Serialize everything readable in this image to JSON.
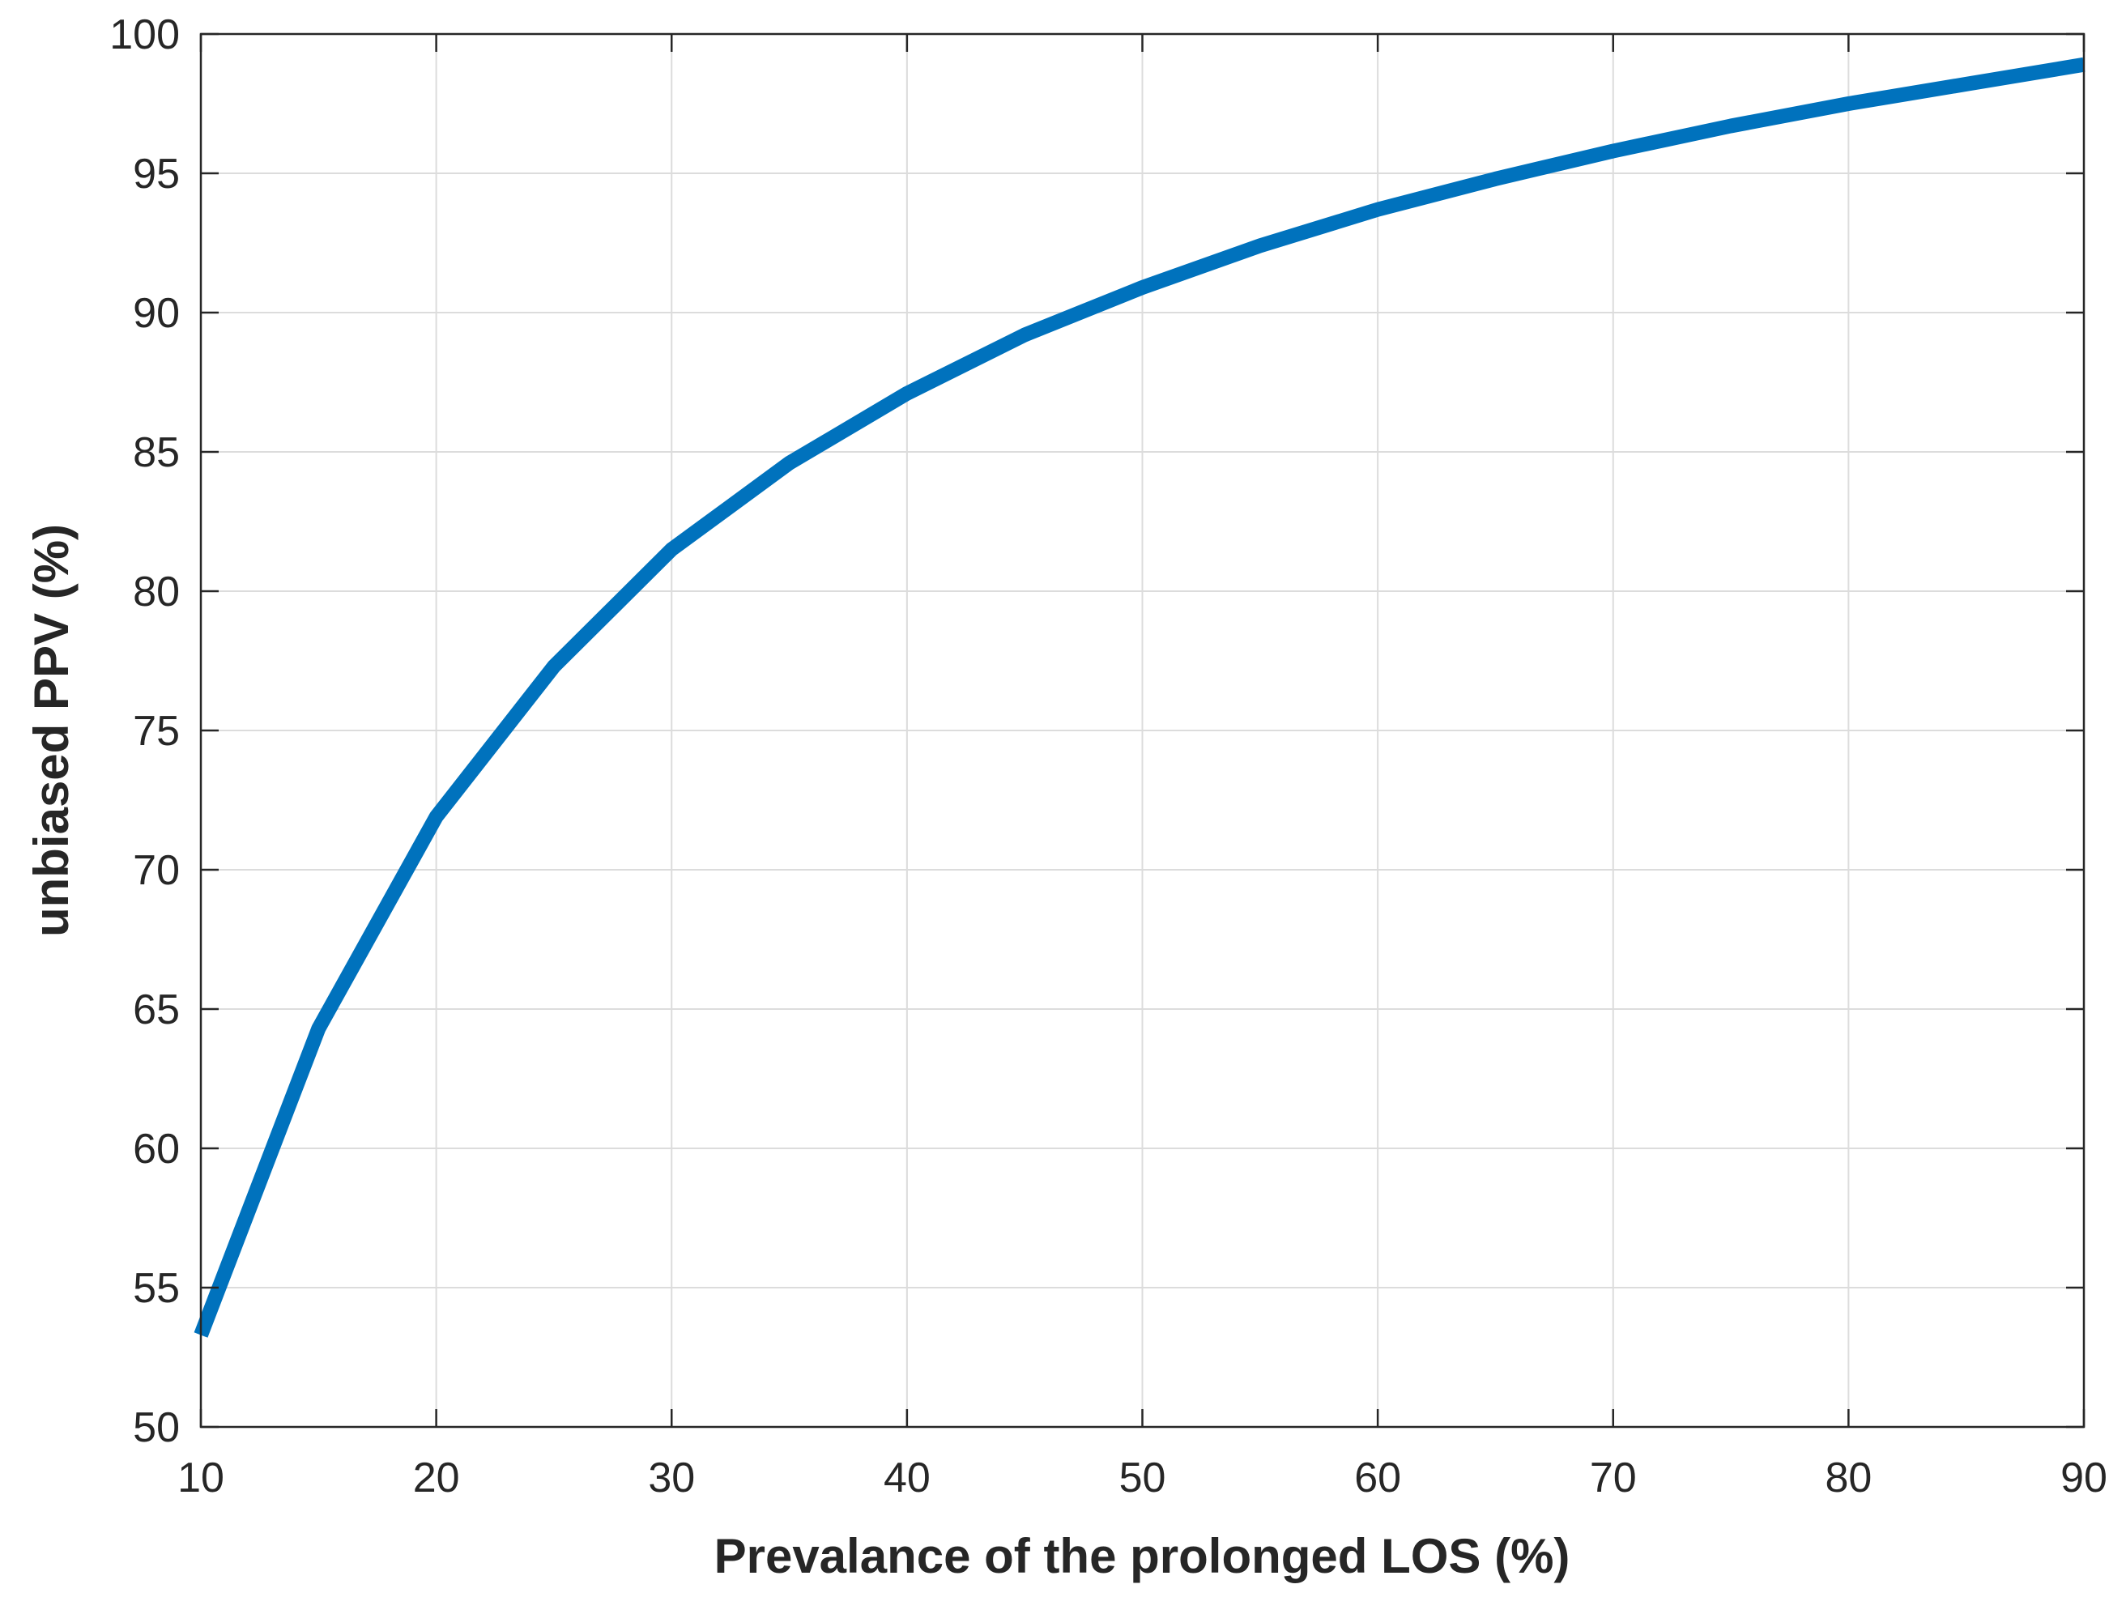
{
  "chart_data": {
    "type": "line",
    "title": "",
    "xlabel": "Prevalance of the prolonged LOS (%)",
    "ylabel": "unbiased PPV (%)",
    "xlim": [
      10,
      90
    ],
    "ylim": [
      50,
      100
    ],
    "grid": true,
    "x_ticks": [
      "10",
      "20",
      "30",
      "40",
      "50",
      "60",
      "70",
      "80",
      "90"
    ],
    "y_ticks": [
      "50",
      "55",
      "60",
      "65",
      "70",
      "75",
      "80",
      "85",
      "90",
      "95",
      "100"
    ],
    "series": [
      {
        "name": "unbiased PPV",
        "color": "#0072BD",
        "x": [
          10,
          15,
          20,
          25,
          30,
          35,
          40,
          45,
          50,
          55,
          60,
          65,
          70,
          75,
          80,
          85,
          90
        ],
        "y": [
          53.3,
          64.3,
          71.9,
          77.3,
          81.5,
          84.6,
          87.1,
          89.2,
          90.9,
          92.4,
          93.7,
          94.8,
          95.8,
          96.7,
          97.5,
          98.2,
          98.9
        ]
      }
    ]
  }
}
